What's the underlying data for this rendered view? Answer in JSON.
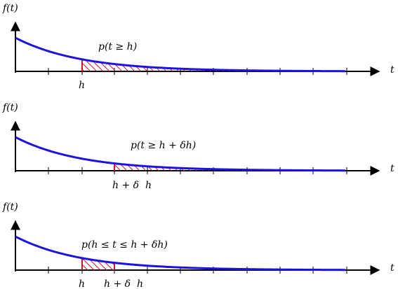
{
  "panels": [
    {
      "ylabel": "f(t)",
      "xlabel": "t",
      "prob_label": "p(t ≥ h)",
      "markers": [
        "h"
      ],
      "shade_from": 0,
      "shade_to": null
    },
    {
      "ylabel": "f(t)",
      "xlabel": "t",
      "prob_label": "p(t ≥ h + δh)",
      "markers": [
        "h + δ  h"
      ],
      "shade_from": 1,
      "shade_to": null
    },
    {
      "ylabel": "f(t)",
      "xlabel": "t",
      "prob_label": "p(h ≤ t ≤ h + δh)",
      "markers": [
        "h",
        "h + δ  h"
      ],
      "shade_from": 0,
      "shade_to": 1
    }
  ],
  "colors": {
    "curve": "#1a12e6",
    "shade": "#e0102a",
    "axis": "#000000"
  }
}
